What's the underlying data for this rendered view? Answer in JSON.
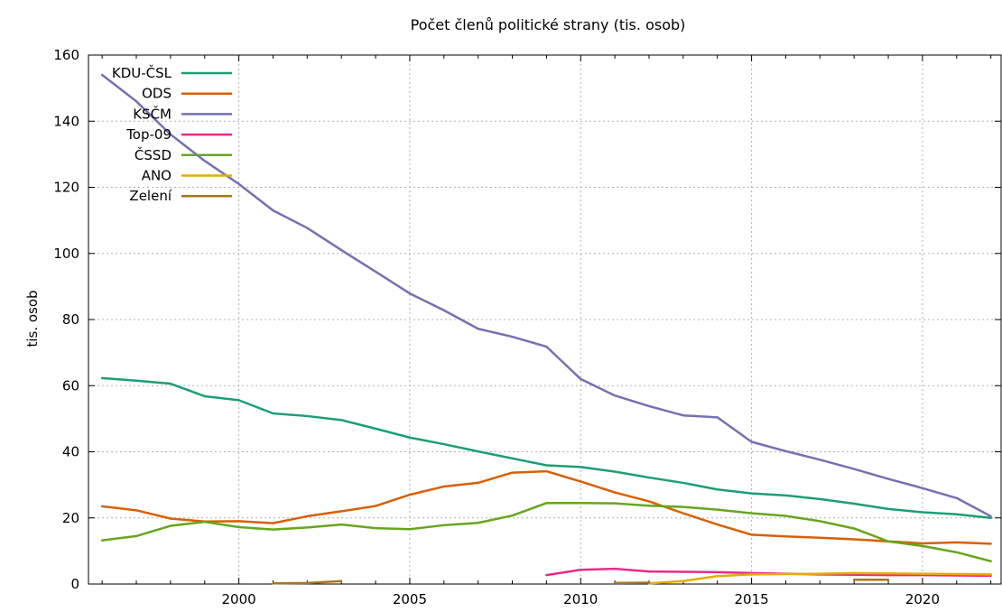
{
  "chart_data": {
    "type": "line",
    "title": "Počet členů politické strany (tis. osob)",
    "xlabel": "",
    "ylabel": "tis. osob",
    "xlim": [
      1995.6,
      2022.3
    ],
    "ylim": [
      0,
      160
    ],
    "xticks": [
      2000,
      2005,
      2010,
      2015,
      2020
    ],
    "yticks": [
      0,
      20,
      40,
      60,
      80,
      100,
      120,
      140,
      160
    ],
    "grid": true,
    "legend_position": "top-left",
    "series": [
      {
        "name": "KDU-ČSL",
        "color": "#1b9e77",
        "points": [
          [
            1996,
            62.3
          ],
          [
            1997,
            61.5
          ],
          [
            1998,
            60.6
          ],
          [
            1999,
            56.8
          ],
          [
            2000,
            55.6
          ],
          [
            2001,
            51.6
          ],
          [
            2002,
            50.8
          ],
          [
            2003,
            49.6
          ],
          [
            2004,
            47.0
          ],
          [
            2005,
            44.3
          ],
          [
            2006,
            42.3
          ],
          [
            2007,
            40.1
          ],
          [
            2008,
            38.0
          ],
          [
            2009,
            35.9
          ],
          [
            2010,
            35.4
          ],
          [
            2011,
            34.0
          ],
          [
            2012,
            32.2
          ],
          [
            2013,
            30.6
          ],
          [
            2014,
            28.6
          ],
          [
            2015,
            27.4
          ],
          [
            2016,
            26.8
          ],
          [
            2017,
            25.7
          ],
          [
            2018,
            24.3
          ],
          [
            2019,
            22.7
          ],
          [
            2020,
            21.7
          ],
          [
            2021,
            21.1
          ],
          [
            2022,
            20.0
          ]
        ]
      },
      {
        "name": "ODS",
        "color": "#d95f02",
        "points": [
          [
            1996,
            23.5
          ],
          [
            1997,
            22.3
          ],
          [
            1998,
            19.8
          ],
          [
            1999,
            18.9
          ],
          [
            2000,
            19.0
          ],
          [
            2001,
            18.4
          ],
          [
            2002,
            20.5
          ],
          [
            2003,
            22.0
          ],
          [
            2004,
            23.6
          ],
          [
            2005,
            27.0
          ],
          [
            2006,
            29.5
          ],
          [
            2007,
            30.6
          ],
          [
            2008,
            33.7
          ],
          [
            2009,
            34.1
          ],
          [
            2010,
            31.0
          ],
          [
            2011,
            27.7
          ],
          [
            2012,
            25.0
          ],
          [
            2013,
            21.4
          ],
          [
            2014,
            18.0
          ],
          [
            2015,
            14.9
          ],
          [
            2016,
            14.4
          ],
          [
            2017,
            14.0
          ],
          [
            2018,
            13.5
          ],
          [
            2019,
            12.9
          ],
          [
            2020,
            12.3
          ],
          [
            2021,
            12.6
          ],
          [
            2022,
            12.2
          ]
        ]
      },
      {
        "name": "KSČM",
        "color": "#7570b3",
        "points": [
          [
            1996,
            154.0
          ],
          [
            1997,
            146.0
          ],
          [
            1998,
            136.0
          ],
          [
            1999,
            128.0
          ],
          [
            2000,
            121.0
          ],
          [
            2001,
            113.0
          ],
          [
            2002,
            107.7
          ],
          [
            2003,
            101.0
          ],
          [
            2004,
            94.5
          ],
          [
            2005,
            87.9
          ],
          [
            2006,
            82.8
          ],
          [
            2007,
            77.2
          ],
          [
            2008,
            74.8
          ],
          [
            2009,
            71.8
          ],
          [
            2010,
            62.0
          ],
          [
            2011,
            57.0
          ],
          [
            2012,
            53.8
          ],
          [
            2013,
            51.0
          ],
          [
            2014,
            50.4
          ],
          [
            2015,
            43.0
          ],
          [
            2016,
            40.2
          ],
          [
            2017,
            37.6
          ],
          [
            2018,
            34.8
          ],
          [
            2019,
            31.8
          ],
          [
            2020,
            29.0
          ],
          [
            2021,
            26.0
          ],
          [
            2022,
            20.5
          ]
        ]
      },
      {
        "name": "Top-09",
        "color": "#e7298a",
        "points": [
          [
            2009,
            2.7
          ],
          [
            2010,
            4.3
          ],
          [
            2011,
            4.6
          ],
          [
            2012,
            3.8
          ],
          [
            2013,
            3.7
          ],
          [
            2014,
            3.6
          ],
          [
            2015,
            3.3
          ],
          [
            2016,
            3.1
          ],
          [
            2017,
            2.9
          ],
          [
            2018,
            2.8
          ],
          [
            2019,
            2.7
          ],
          [
            2020,
            2.7
          ],
          [
            2021,
            2.6
          ],
          [
            2022,
            2.5
          ]
        ]
      },
      {
        "name": "ČSSD",
        "color": "#66a61e",
        "points": [
          [
            1996,
            13.2
          ],
          [
            1997,
            14.5
          ],
          [
            1998,
            17.6
          ],
          [
            1999,
            18.8
          ],
          [
            2000,
            17.2
          ],
          [
            2001,
            16.5
          ],
          [
            2002,
            17.1
          ],
          [
            2003,
            18.0
          ],
          [
            2004,
            16.9
          ],
          [
            2005,
            16.6
          ],
          [
            2006,
            17.8
          ],
          [
            2007,
            18.5
          ],
          [
            2008,
            20.7
          ],
          [
            2009,
            24.5
          ],
          [
            2010,
            24.5
          ],
          [
            2011,
            24.4
          ],
          [
            2012,
            23.7
          ],
          [
            2013,
            23.3
          ],
          [
            2014,
            22.5
          ],
          [
            2015,
            21.4
          ],
          [
            2016,
            20.6
          ],
          [
            2017,
            19.0
          ],
          [
            2018,
            16.8
          ],
          [
            2019,
            12.9
          ],
          [
            2020,
            11.5
          ],
          [
            2021,
            9.6
          ],
          [
            2022,
            6.9
          ]
        ]
      },
      {
        "name": "ANO",
        "color": "#e6ab02",
        "points": [
          [
            2012,
            0.2
          ],
          [
            2013,
            0.9
          ],
          [
            2014,
            2.4
          ],
          [
            2015,
            2.9
          ],
          [
            2016,
            3.0
          ],
          [
            2017,
            3.1
          ],
          [
            2018,
            3.3
          ],
          [
            2019,
            3.2
          ],
          [
            2020,
            3.1
          ],
          [
            2021,
            3.0
          ],
          [
            2022,
            2.9
          ]
        ]
      },
      {
        "name": "Zelení",
        "color": "#a6761d",
        "points": [
          [
            2001,
            0.2
          ],
          [
            2002,
            0.3
          ],
          [
            2003,
            0.9
          ],
          [
            null,
            null
          ],
          [
            2011,
            0.3
          ],
          [
            2012,
            0.4
          ],
          [
            null,
            null
          ],
          [
            2018,
            1.3
          ],
          [
            2019,
            1.3
          ]
        ]
      }
    ]
  }
}
